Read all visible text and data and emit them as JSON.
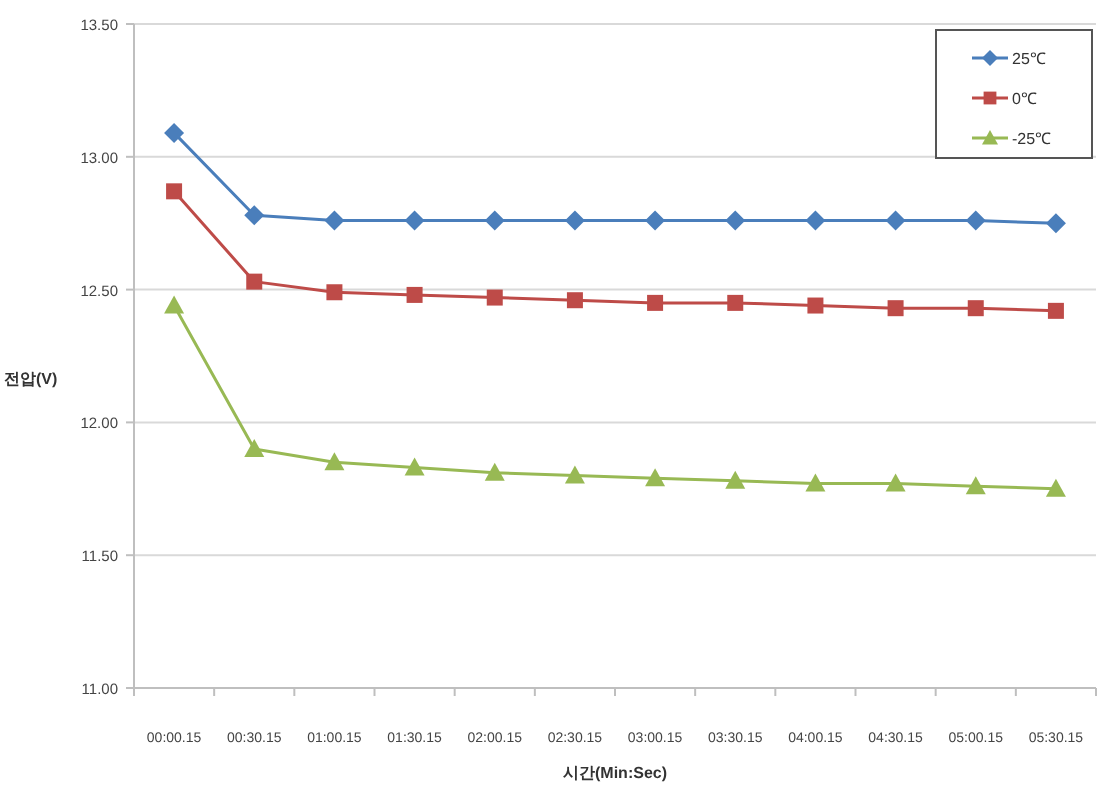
{
  "chart_data": {
    "type": "line",
    "xlabel": "시간(Min:Sec)",
    "ylabel": "전압(V)",
    "categories": [
      "00:00.15",
      "00:30.15",
      "01:00.15",
      "01:30.15",
      "02:00.15",
      "02:30.15",
      "03:00.15",
      "03:30.15",
      "04:00.15",
      "04:30.15",
      "05:00.15",
      "05:30.15"
    ],
    "series": [
      {
        "name": "25℃",
        "color": "#4a7ebb",
        "marker": "diamond",
        "values": [
          13.09,
          12.78,
          12.76,
          12.76,
          12.76,
          12.76,
          12.76,
          12.76,
          12.76,
          12.76,
          12.76,
          12.75
        ]
      },
      {
        "name": "0℃",
        "color": "#be4b48",
        "marker": "square",
        "values": [
          12.87,
          12.53,
          12.49,
          12.48,
          12.47,
          12.46,
          12.45,
          12.45,
          12.44,
          12.43,
          12.43,
          12.42
        ]
      },
      {
        "name": "-25℃",
        "color": "#98b954",
        "marker": "triangle",
        "values": [
          12.44,
          11.9,
          11.85,
          11.83,
          11.81,
          11.8,
          11.79,
          11.78,
          11.77,
          11.77,
          11.76,
          11.75
        ]
      }
    ],
    "ylim": [
      11,
      13.5
    ],
    "yticks": [
      {
        "value": 11,
        "label": "11.00"
      },
      {
        "value": 11.5,
        "label": "11.50"
      },
      {
        "value": 12,
        "label": "12.00"
      },
      {
        "value": 12.5,
        "label": "12.50"
      },
      {
        "value": 13,
        "label": "13.00"
      },
      {
        "value": 13.5,
        "label": "13.50"
      }
    ],
    "grid": "y",
    "legend": "top right"
  }
}
